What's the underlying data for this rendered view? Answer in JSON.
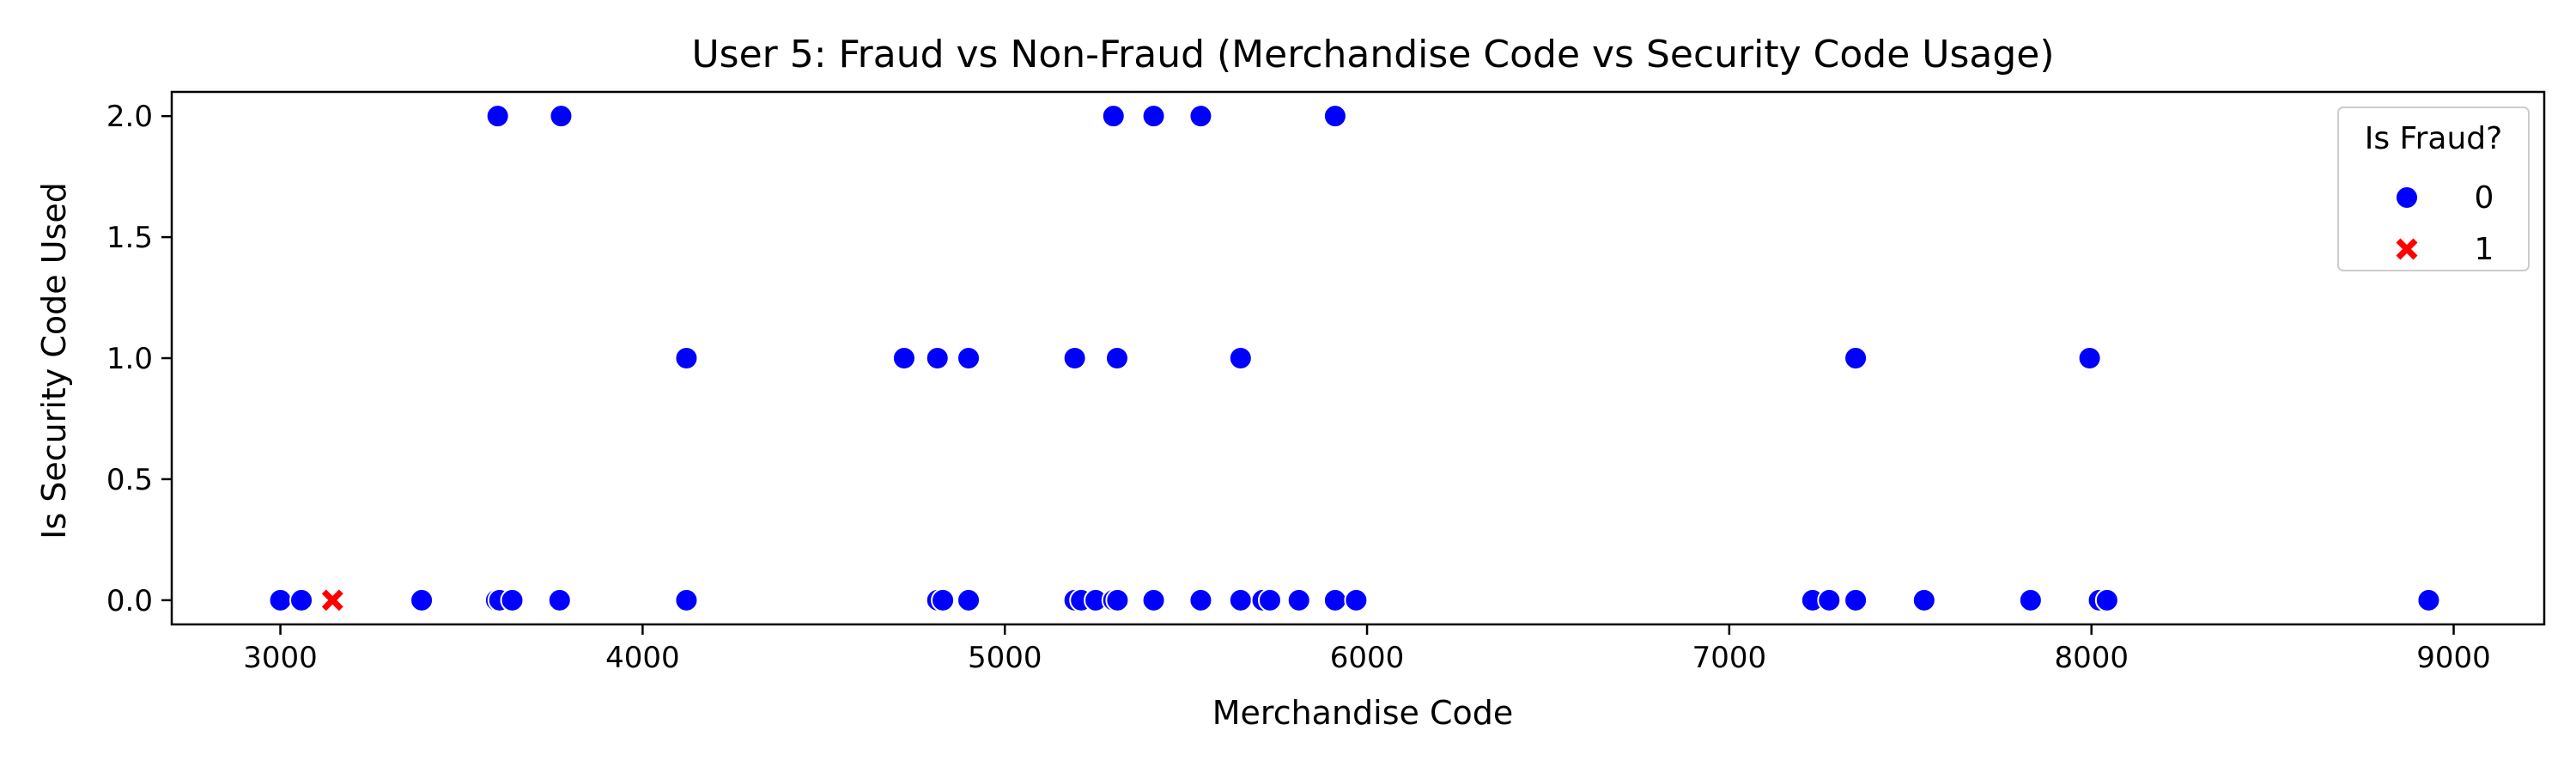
{
  "chart_data": {
    "type": "scatter",
    "title": "User 5: Fraud vs Non-Fraud (Merchandise Code vs Security Code Usage)",
    "xlabel": "Merchandise Code",
    "ylabel": "Is Security Code Used",
    "xlim": [
      2700,
      9250
    ],
    "ylim": [
      -0.1,
      2.1
    ],
    "xticks": [
      3000,
      4000,
      5000,
      6000,
      7000,
      8000,
      9000
    ],
    "yticks": [
      0.0,
      0.5,
      1.0,
      1.5,
      2.0
    ],
    "ytick_labels": [
      "0.0",
      "0.5",
      "1.0",
      "1.5",
      "2.0"
    ],
    "grid": false,
    "legend": {
      "title": "Is Fraud?",
      "placement": "top-right",
      "entries": [
        {
          "label": "0",
          "marker": "circle",
          "color": "#0000ff"
        },
        {
          "label": "1",
          "marker": "x",
          "color": "#ff0000"
        }
      ]
    },
    "series": [
      {
        "name": "0",
        "marker": "circle",
        "color": "#0000ff",
        "points": [
          [
            3600,
            2
          ],
          [
            3775,
            2
          ],
          [
            5300,
            2
          ],
          [
            5411,
            2
          ],
          [
            5541,
            2
          ],
          [
            5912,
            2
          ],
          [
            4121,
            1
          ],
          [
            4722,
            1
          ],
          [
            4814,
            1
          ],
          [
            4900,
            1
          ],
          [
            5193,
            1
          ],
          [
            5310,
            1
          ],
          [
            5651,
            1
          ],
          [
            7349,
            1
          ],
          [
            7995,
            1
          ],
          [
            3000,
            0
          ],
          [
            3058,
            0
          ],
          [
            3390,
            0
          ],
          [
            3596,
            0
          ],
          [
            3605,
            0
          ],
          [
            3640,
            0
          ],
          [
            3771,
            0
          ],
          [
            4121,
            0
          ],
          [
            4814,
            0
          ],
          [
            4829,
            0
          ],
          [
            4900,
            0
          ],
          [
            5193,
            0
          ],
          [
            5211,
            0
          ],
          [
            5251,
            0
          ],
          [
            5300,
            0
          ],
          [
            5311,
            0
          ],
          [
            5411,
            0
          ],
          [
            5541,
            0
          ],
          [
            5651,
            0
          ],
          [
            5712,
            0
          ],
          [
            5732,
            0
          ],
          [
            5812,
            0
          ],
          [
            5912,
            0
          ],
          [
            5970,
            0
          ],
          [
            7230,
            0
          ],
          [
            7276,
            0
          ],
          [
            7349,
            0
          ],
          [
            7538,
            0
          ],
          [
            7832,
            0
          ],
          [
            8021,
            0
          ],
          [
            8043,
            0
          ],
          [
            8931,
            0
          ]
        ]
      },
      {
        "name": "1",
        "marker": "x",
        "color": "#ff0000",
        "points": [
          [
            3144,
            0
          ]
        ]
      }
    ]
  }
}
